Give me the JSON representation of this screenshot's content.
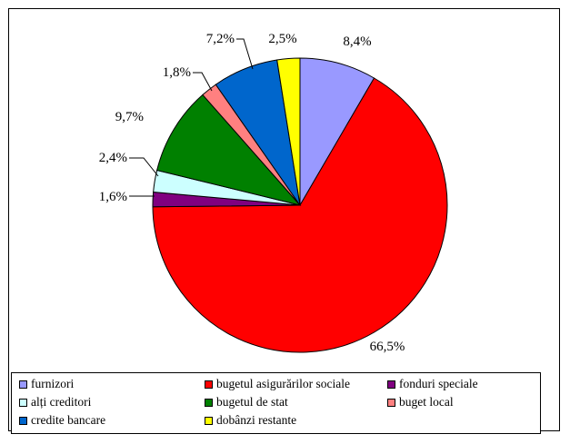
{
  "chart_data": {
    "type": "pie",
    "slices": [
      {
        "label": "furnizori",
        "value": 8.4,
        "value_label": "8,4%",
        "color": "#9999ff"
      },
      {
        "label": "bugetul asigurărilor sociale",
        "value": 66.5,
        "value_label": "66,5%",
        "color": "#ff0000"
      },
      {
        "label": "fonduri speciale",
        "value": 1.6,
        "value_label": "1,6%",
        "color": "#800080"
      },
      {
        "label": "alți creditori",
        "value": 2.4,
        "value_label": "2,4%",
        "color": "#ccffff"
      },
      {
        "label": "bugetul de stat",
        "value": 9.7,
        "value_label": "9,7%",
        "color": "#008000"
      },
      {
        "label": "buget local",
        "value": 1.8,
        "value_label": "1,8%",
        "color": "#ff8080"
      },
      {
        "label": "credite bancare",
        "value": 7.2,
        "value_label": "7,2%",
        "color": "#0066cc"
      },
      {
        "label": "dobânzi restante",
        "value": 2.5,
        "value_label": "2,5%",
        "color": "#ffff00"
      }
    ],
    "legend_position": "bottom",
    "start": "top, clockwise"
  }
}
